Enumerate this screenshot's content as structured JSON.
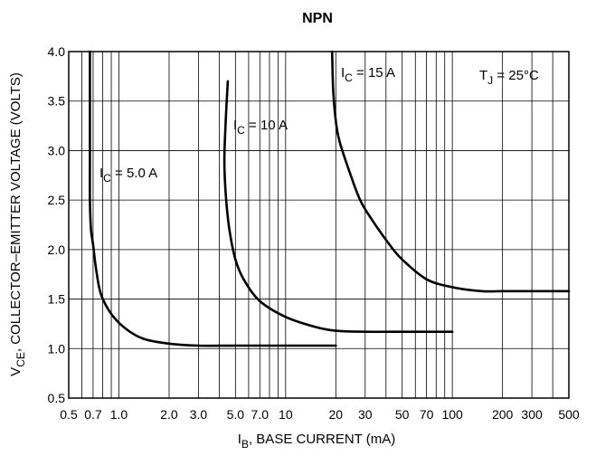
{
  "chart_data": {
    "type": "line",
    "title": "NPN",
    "xlabel": {
      "main": "I",
      "sub": "B",
      "rest": ", BASE CURRENT (mA)"
    },
    "ylabel": {
      "main": "V",
      "sub": "CE",
      "rest": ", COLLECTOR–EMITTER VOLTAGE (VOLTS)"
    },
    "x_scale": "log",
    "xlim": [
      0.5,
      500
    ],
    "ylim": [
      0.5,
      4.0
    ],
    "grid": true,
    "x_ticks": [
      {
        "value": 0.5,
        "label": "0.5"
      },
      {
        "value": 0.7,
        "label": "0.7"
      },
      {
        "value": 1,
        "label": "1.0"
      },
      {
        "value": 2,
        "label": "2.0"
      },
      {
        "value": 3,
        "label": "3.0"
      },
      {
        "value": 5,
        "label": "5.0"
      },
      {
        "value": 7,
        "label": "7.0"
      },
      {
        "value": 10,
        "label": "10"
      },
      {
        "value": 20,
        "label": "20"
      },
      {
        "value": 30,
        "label": "30"
      },
      {
        "value": 50,
        "label": "50"
      },
      {
        "value": 70,
        "label": "70"
      },
      {
        "value": 100,
        "label": "100"
      },
      {
        "value": 200,
        "label": "200"
      },
      {
        "value": 300,
        "label": "300"
      },
      {
        "value": 500,
        "label": "500"
      }
    ],
    "y_ticks": [
      {
        "value": 0.5,
        "label": "0.5"
      },
      {
        "value": 1.0,
        "label": "1.0"
      },
      {
        "value": 1.5,
        "label": "1.5"
      },
      {
        "value": 2.0,
        "label": "2.0"
      },
      {
        "value": 2.5,
        "label": "2.5"
      },
      {
        "value": 3.0,
        "label": "3.0"
      },
      {
        "value": 3.5,
        "label": "3.5"
      },
      {
        "value": 4.0,
        "label": "4.0"
      }
    ],
    "annotation": {
      "main": "T",
      "sub": "J",
      "rest": " = 25°C"
    },
    "series": [
      {
        "label_main": "I",
        "label_sub": "C",
        "label_rest": " = 5.0 A",
        "points": [
          [
            0.67,
            4.0
          ],
          [
            0.67,
            3.0
          ],
          [
            0.67,
            2.5
          ],
          [
            0.68,
            2.2
          ],
          [
            0.7,
            2.05
          ],
          [
            0.73,
            1.8
          ],
          [
            0.78,
            1.55
          ],
          [
            0.9,
            1.35
          ],
          [
            1.1,
            1.2
          ],
          [
            1.4,
            1.1
          ],
          [
            2.0,
            1.05
          ],
          [
            3.0,
            1.03
          ],
          [
            5.0,
            1.03
          ],
          [
            10,
            1.03
          ],
          [
            20,
            1.03
          ]
        ]
      },
      {
        "label_main": "I",
        "label_sub": "C",
        "label_rest": " = 10 A",
        "points": [
          [
            4.5,
            3.7
          ],
          [
            4.4,
            3.4
          ],
          [
            4.3,
            3.0
          ],
          [
            4.3,
            2.8
          ],
          [
            4.4,
            2.5
          ],
          [
            4.6,
            2.2
          ],
          [
            5.0,
            1.9
          ],
          [
            5.6,
            1.7
          ],
          [
            7.0,
            1.48
          ],
          [
            10,
            1.32
          ],
          [
            15,
            1.22
          ],
          [
            20,
            1.18
          ],
          [
            30,
            1.17
          ],
          [
            50,
            1.17
          ],
          [
            100,
            1.17
          ]
        ]
      },
      {
        "label_main": "I",
        "label_sub": "C",
        "label_rest": " = 15 A",
        "points": [
          [
            19,
            4.0
          ],
          [
            19.3,
            3.6
          ],
          [
            20,
            3.3
          ],
          [
            21,
            3.1
          ],
          [
            24,
            2.8
          ],
          [
            28,
            2.5
          ],
          [
            33,
            2.3
          ],
          [
            42,
            2.05
          ],
          [
            50,
            1.9
          ],
          [
            70,
            1.7
          ],
          [
            100,
            1.62
          ],
          [
            150,
            1.58
          ],
          [
            200,
            1.58
          ],
          [
            300,
            1.58
          ],
          [
            500,
            1.58
          ]
        ]
      }
    ]
  }
}
